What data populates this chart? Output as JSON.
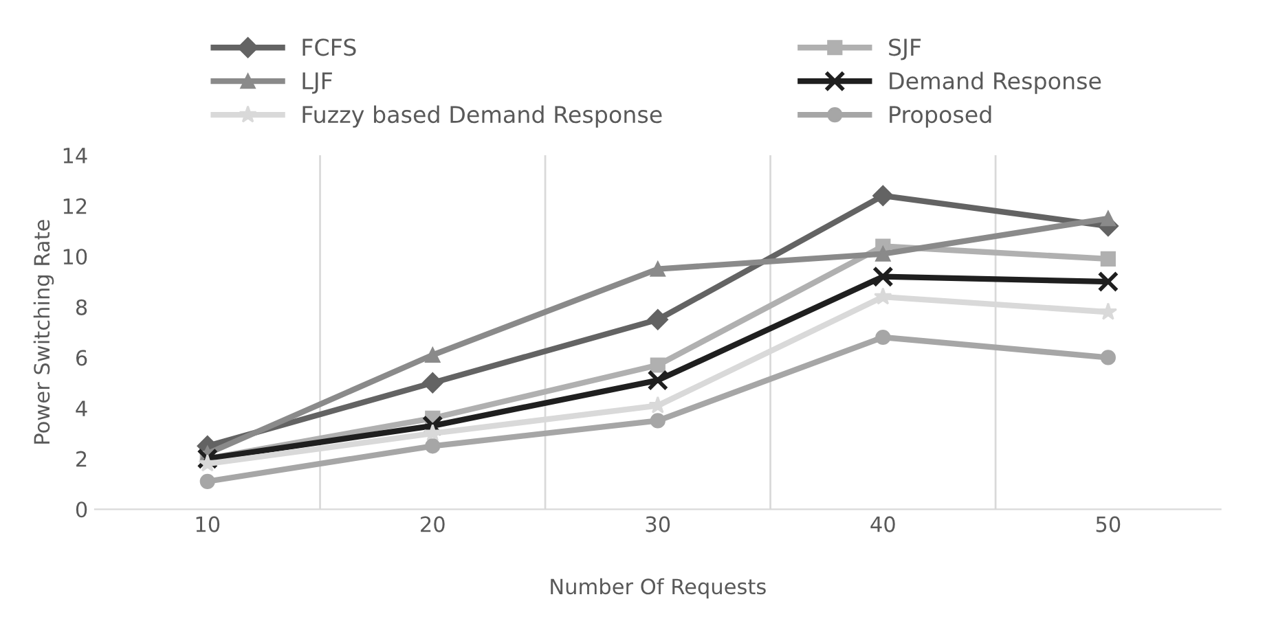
{
  "chart_data": {
    "type": "line",
    "xlabel": "Number Of Requests",
    "ylabel": "Power Switching Rate",
    "categories": [
      "10",
      "20",
      "30",
      "40",
      "50"
    ],
    "ylim": [
      0,
      14
    ],
    "yticks": [
      0,
      2,
      4,
      6,
      8,
      10,
      12,
      14
    ],
    "grid": "x",
    "legend": "top",
    "series": [
      {
        "name": "FCFS",
        "color": "#636363",
        "marker": "diamond",
        "values": [
          2.5,
          5,
          7.5,
          12.4,
          11.2
        ]
      },
      {
        "name": "SJF",
        "color": "#b0b0b0",
        "marker": "square",
        "values": [
          2,
          3.6,
          5.7,
          10.4,
          9.9
        ]
      },
      {
        "name": "LJF",
        "color": "#8a8a8a",
        "marker": "triangle",
        "values": [
          2.2,
          6.1,
          9.5,
          10.1,
          11.5
        ]
      },
      {
        "name": "Demand Response",
        "color": "#1f1f1f",
        "marker": "cross",
        "values": [
          2,
          3.3,
          5.1,
          9.2,
          9
        ]
      },
      {
        "name": "Fuzzy based Demand Response",
        "color": "#d9d9d9",
        "marker": "star",
        "values": [
          1.8,
          3,
          4.1,
          8.4,
          7.8
        ]
      },
      {
        "name": "Proposed",
        "color": "#a6a6a6",
        "marker": "circle",
        "values": [
          1.1,
          2.5,
          3.5,
          6.8,
          6
        ]
      }
    ]
  }
}
